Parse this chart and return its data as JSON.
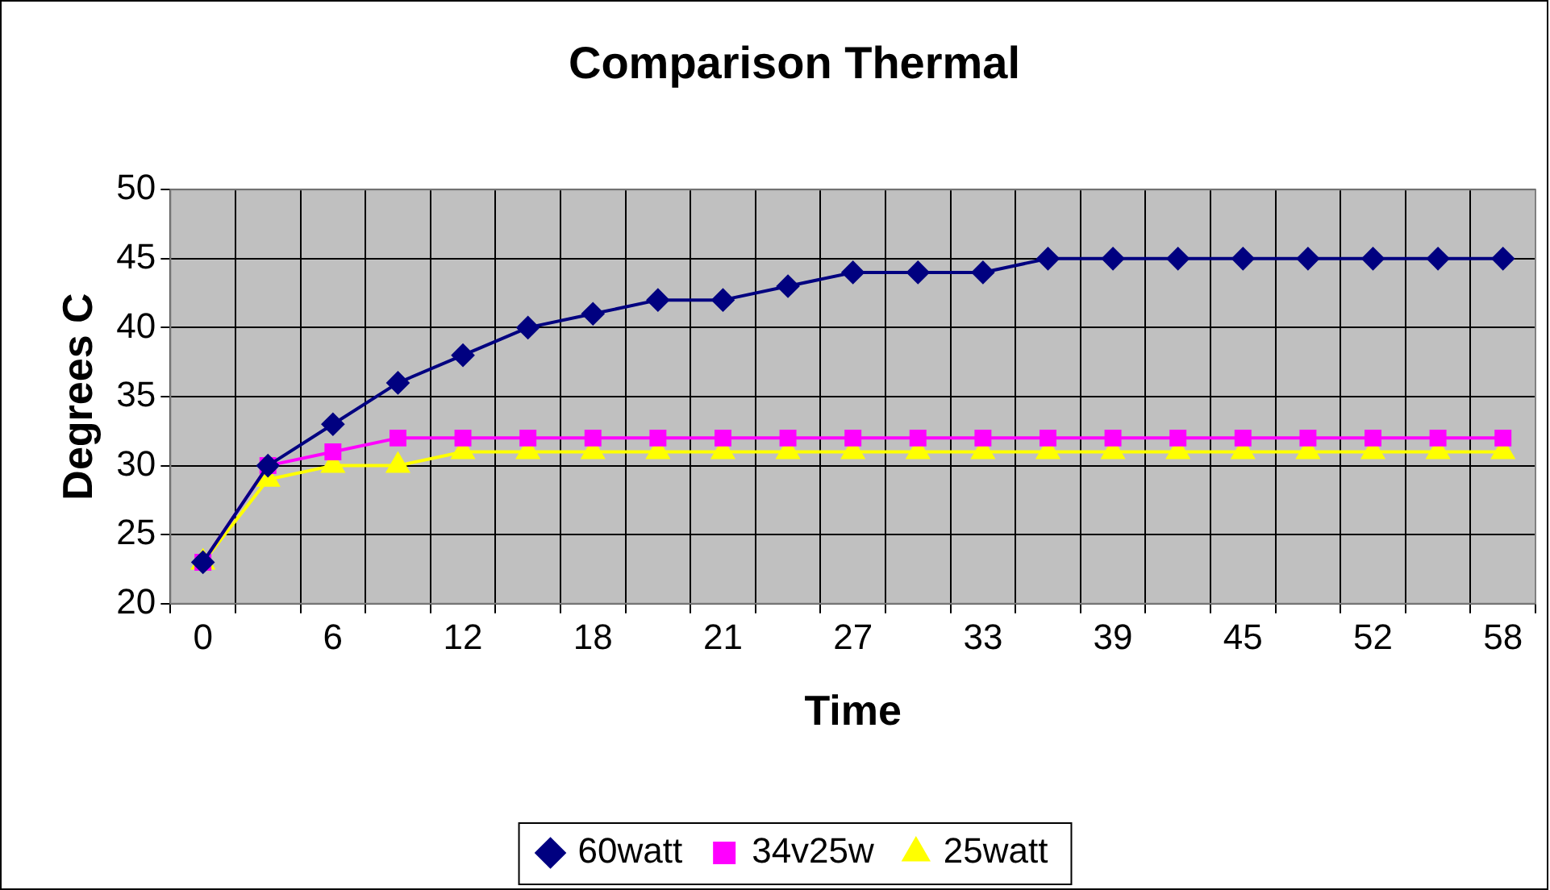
{
  "chart_data": {
    "type": "line",
    "title": "Comparison Thermal",
    "xlabel": "Time",
    "ylabel": "Degrees C",
    "categories": [
      "0",
      null,
      "6",
      null,
      "12",
      null,
      "18",
      null,
      "21",
      null,
      "27",
      null,
      "33",
      null,
      "39",
      null,
      "45",
      null,
      "52",
      null,
      "58"
    ],
    "series": [
      {
        "name": "60watt",
        "color": "#000080",
        "marker": "diamond",
        "values": [
          23,
          30,
          33,
          36,
          38,
          40,
          41,
          42,
          42,
          43,
          44,
          44,
          44,
          45,
          45,
          45,
          45,
          45,
          45,
          45,
          45
        ]
      },
      {
        "name": "34v25w",
        "color": "#ff00ff",
        "marker": "square",
        "values": [
          23,
          30,
          31,
          32,
          32,
          32,
          32,
          32,
          32,
          32,
          32,
          32,
          32,
          32,
          32,
          32,
          32,
          32,
          32,
          32,
          32
        ]
      },
      {
        "name": "25watt",
        "color": "#ffff00",
        "marker": "triangle",
        "values": [
          23,
          29,
          30,
          30,
          31,
          31,
          31,
          31,
          31,
          31,
          31,
          31,
          31,
          31,
          31,
          31,
          31,
          31,
          31,
          31,
          31
        ]
      }
    ],
    "ylim": [
      20,
      50
    ],
    "yticks": [
      20,
      25,
      30,
      35,
      40,
      45,
      50
    ],
    "grid": true,
    "legend": "bottom",
    "line_style": "solid"
  }
}
